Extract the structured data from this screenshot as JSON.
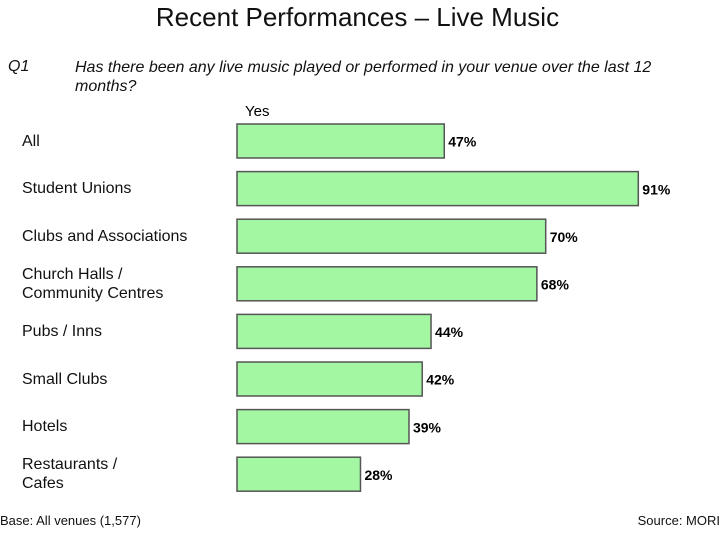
{
  "chart_data": {
    "type": "bar",
    "orientation": "horizontal",
    "title": "Recent Performances – Live Music",
    "question_label": "Q1",
    "question": "Has there been any live music played or performed in your venue  over the last 12\nmonths?",
    "categories": [
      "All",
      "Student Unions",
      "Clubs and Associations",
      "Church Halls /\nCommunity Centres",
      "Pubs / Inns",
      "Small Clubs",
      "Hotels",
      "Restaurants /\nCafes"
    ],
    "series": [
      {
        "name": "Yes",
        "color": "#a3f7a3",
        "values": [
          47,
          91,
          70,
          68,
          44,
          42,
          39,
          28
        ],
        "value_labels": [
          "47%",
          "91%",
          "70%",
          "68%",
          "44%",
          "42%",
          "39%",
          "28%"
        ]
      }
    ],
    "base_note": "Base: All venues (1,577)",
    "source": "Source: MORI"
  }
}
